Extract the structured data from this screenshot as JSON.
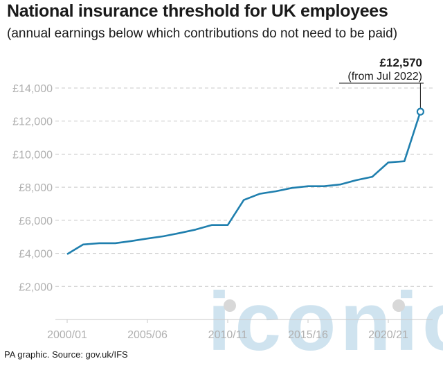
{
  "title": "National insurance threshold for UK employees",
  "subtitle": "(annual earnings below which contributions do not need to be paid)",
  "source": "PA graphic. Source: gov.uk/IFS",
  "watermark": "iconic",
  "colors": {
    "line": "#1f7fae",
    "grid": "#c8c8c8",
    "tick": "#b0b0b0",
    "watermark": "#cfe3ef"
  },
  "chart_data": {
    "type": "line",
    "title": "National insurance threshold for UK employees",
    "subtitle": "(annual earnings below which contributions do not need to be paid)",
    "xlabel": "",
    "ylabel": "",
    "x_ticks": [
      "2000/01",
      "2005/06",
      "2010/11",
      "2015/16",
      "2020/21"
    ],
    "y_ticks": [
      "£2,000",
      "£4,000",
      "£6,000",
      "£8,000",
      "£10,000",
      "£12,000",
      "£14,000"
    ],
    "ylim": [
      0,
      14000
    ],
    "grid": "horizontal dashed",
    "legend": "none",
    "series": [
      {
        "x": [
          "2000/01",
          "2001/02",
          "2002/03",
          "2003/04",
          "2004/05",
          "2005/06",
          "2006/07",
          "2007/08",
          "2008/09",
          "2009/10",
          "2010/11",
          "2011/12",
          "2012/13",
          "2013/14",
          "2014/15",
          "2015/16",
          "2016/17",
          "2017/18",
          "2018/19",
          "2019/20",
          "2020/21",
          "2021/22",
          "2022/23"
        ],
        "values": [
          3952,
          4535,
          4615,
          4615,
          4745,
          4895,
          5035,
          5225,
          5435,
          5715,
          5715,
          7225,
          7605,
          7755,
          7956,
          8060,
          8060,
          8164,
          8424,
          8632,
          9500,
          9568,
          12570
        ]
      }
    ],
    "annotation": {
      "value": "£12,570",
      "note": "(from Jul 2022)"
    }
  }
}
